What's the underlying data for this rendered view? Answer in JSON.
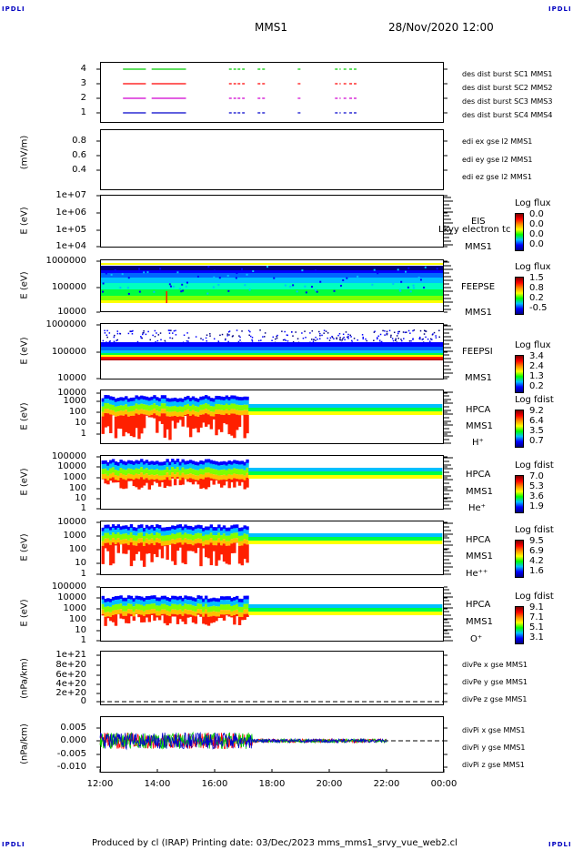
{
  "corners": {
    "tl": "IPDLI",
    "tr": "IPDLI",
    "bl": "IPDLI",
    "br": "IPDLI"
  },
  "header": {
    "spacecraft": "MMS1",
    "datetime": "28/Nov/2020 12:00"
  },
  "footer": {
    "text": "Produced by cl (IRAP)   Printing date: 03/Dec/2023   mms_mms1_srvy_vue_web2.cl"
  },
  "colors": {
    "red": "#ff0000",
    "green": "#00cc00",
    "blue": "#0000cc",
    "magenta": "#d000d0"
  },
  "chart_data": {
    "type": "multi-panel",
    "xaxis": {
      "ticks": [
        "12:00",
        "14:00",
        "16:00",
        "18:00",
        "20:00",
        "22:00",
        "00:00"
      ],
      "range": [
        "12:00",
        "00:00"
      ]
    },
    "panels": [
      {
        "id": "burst",
        "yticks": [
          "4",
          "3",
          "2",
          "1"
        ],
        "legend": [
          {
            "text": "des dist burst SC1 MMS1",
            "color": "#0000cc"
          },
          {
            "text": "des dist burst SC2 MMS2",
            "color": "#d000d0"
          },
          {
            "text": "des dist burst SC3 MMS3",
            "color": "#ff0000"
          },
          {
            "text": "des dist burst SC4 MMS4",
            "color": "#00cc00"
          }
        ],
        "segments_hours": [
          [
            12.8,
            13.6
          ],
          [
            13.8,
            15.0
          ],
          [
            16.5,
            16.75
          ],
          [
            16.8,
            17.05
          ],
          [
            17.5,
            17.8
          ],
          [
            18.9,
            19.0
          ],
          [
            20.2,
            20.4
          ],
          [
            20.5,
            20.6
          ],
          [
            20.7,
            20.95
          ]
        ]
      },
      {
        "id": "edi",
        "ylabel": "(mV/m)",
        "yticks": [
          "0.8",
          "0.6",
          "0.4"
        ],
        "legend": [
          {
            "text": "edi ex gse l2 MMS1",
            "color": "#ff0000"
          },
          {
            "text": "edi ey gse l2 MMS1",
            "color": "#00cc00"
          },
          {
            "text": "edi ez gse l2 MMS1",
            "color": "#0000cc"
          }
        ]
      },
      {
        "id": "eis",
        "ylabel": "E (eV)",
        "yticks": [
          "1e+07",
          "1e+06",
          "1e+05",
          "1e+04"
        ],
        "inst": [
          "EIS",
          "MMS1"
        ],
        "overlay": "Lkyy electron tc",
        "cb_title": "Log flux",
        "cb_values": [
          "0.0",
          "0.0",
          "0.0",
          "0.0"
        ]
      },
      {
        "id": "feepse",
        "ylabel": "E (eV)",
        "yticks": [
          "1000000",
          "100000",
          "10000"
        ],
        "inst": [
          "FEEPSE",
          "MMS1"
        ],
        "cb_title": "Log flux",
        "cb_values": [
          "1.5",
          "0.8",
          "0.2",
          "-0.5"
        ]
      },
      {
        "id": "feepsi",
        "ylabel": "E (eV)",
        "yticks": [
          "1000000",
          "100000",
          "10000"
        ],
        "inst": [
          "FEEPSI",
          "MMS1"
        ],
        "cb_title": "Log flux",
        "cb_values": [
          "3.4",
          "2.4",
          "1.3",
          "0.2"
        ]
      },
      {
        "id": "hpca_h",
        "ylabel": "E (eV)",
        "yticks": [
          "10000",
          "1000",
          "100",
          "10",
          "1"
        ],
        "inst": [
          "HPCA",
          "MMS1",
          "H⁺"
        ],
        "cb_title": "Log fdist",
        "cb_values": [
          "9.2",
          "6.4",
          "3.5",
          "0.7"
        ]
      },
      {
        "id": "hpca_he",
        "ylabel": "E (eV)",
        "yticks": [
          "100000",
          "10000",
          "1000",
          "100",
          "10",
          "1"
        ],
        "inst": [
          "HPCA",
          "MMS1",
          "He⁺"
        ],
        "cb_title": "Log fdist",
        "cb_values": [
          "7.0",
          "5.3",
          "3.6",
          "1.9"
        ]
      },
      {
        "id": "hpca_hepp",
        "ylabel": "E (eV)",
        "yticks": [
          "10000",
          "1000",
          "100",
          "10",
          "1"
        ],
        "inst": [
          "HPCA",
          "MMS1",
          "He⁺⁺"
        ],
        "cb_title": "Log fdist",
        "cb_values": [
          "9.5",
          "6.9",
          "4.2",
          "1.6"
        ]
      },
      {
        "id": "hpca_o",
        "ylabel": "E (eV)",
        "yticks": [
          "100000",
          "10000",
          "1000",
          "100",
          "10",
          "1"
        ],
        "inst": [
          "HPCA",
          "MMS1",
          "O⁺"
        ],
        "cb_title": "Log fdist",
        "cb_values": [
          "9.1",
          "7.1",
          "5.1",
          "3.1"
        ]
      },
      {
        "id": "divpe",
        "ylabel": "(nPa/km)",
        "yticks": [
          "1e+21",
          "8e+20",
          "6e+20",
          "4e+20",
          "2e+20",
          "0"
        ],
        "legend": [
          {
            "text": "divPe x gse MMS1",
            "color": "#ff0000"
          },
          {
            "text": "divPe y gse MMS1",
            "color": "#00cc00"
          },
          {
            "text": "divPe z gse MMS1",
            "color": "#0000cc"
          }
        ]
      },
      {
        "id": "divpi",
        "ylabel": "(nPa/km)",
        "yticks": [
          "0.005",
          "0.000",
          "-0.005",
          "-0.010"
        ],
        "legend": [
          {
            "text": "divPi x gse MMS1",
            "color": "#ff0000"
          },
          {
            "text": "divPi y gse MMS1",
            "color": "#00cc00"
          },
          {
            "text": "divPi z gse MMS1",
            "color": "#0000cc"
          }
        ]
      }
    ]
  }
}
